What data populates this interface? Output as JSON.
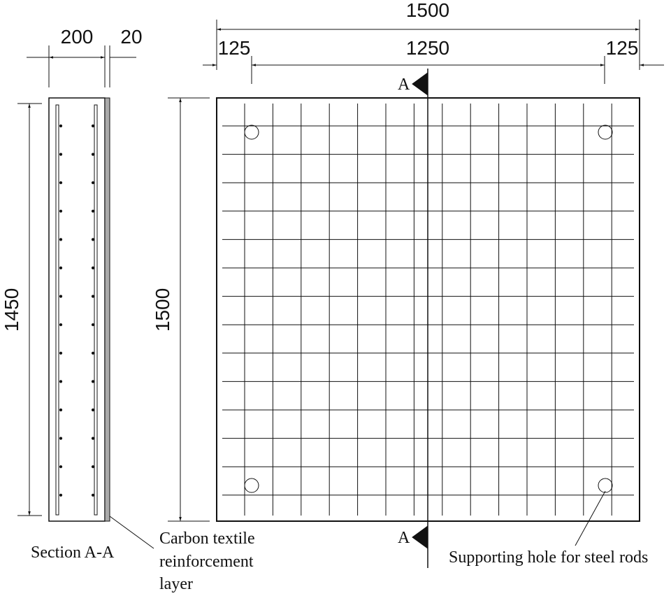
{
  "dimensions": {
    "plan_width": "1500",
    "left_edge": "125",
    "middle": "1250",
    "right_edge": "125",
    "plan_height": "1500",
    "section_depth": "200",
    "layer_thickness": "20",
    "section_height": "1450"
  },
  "section_marks": [
    "A",
    "A"
  ],
  "labels": {
    "section": "Section A-A",
    "carbon_layer": [
      "Carbon textile",
      "reinforcement",
      "layer"
    ],
    "hole": "Supporting hole for steel rods"
  }
}
